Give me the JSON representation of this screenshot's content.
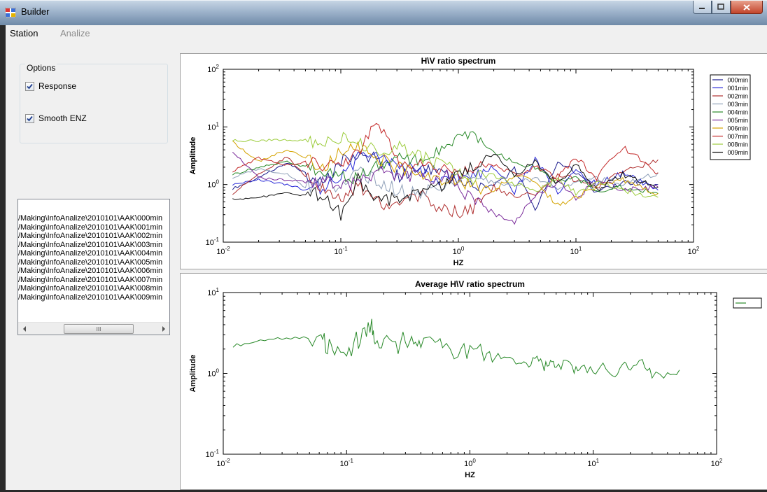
{
  "window": {
    "title": "Builder"
  },
  "menu": {
    "station": "Station",
    "analize": "Analize"
  },
  "options": {
    "legend": "Options",
    "response_label": "Response",
    "response_checked": true,
    "smooth_label": "Smooth ENZ",
    "smooth_checked": true
  },
  "files": [
    "/Making\\InfoAnalize\\2010101\\AAK\\000min",
    "/Making\\InfoAnalize\\2010101\\AAK\\001min",
    "/Making\\InfoAnalize\\2010101\\AAK\\002min",
    "/Making\\InfoAnalize\\2010101\\AAK\\003min",
    "/Making\\InfoAnalize\\2010101\\AAK\\004min",
    "/Making\\InfoAnalize\\2010101\\AAK\\005min",
    "/Making\\InfoAnalize\\2010101\\AAK\\006min",
    "/Making\\InfoAnalize\\2010101\\AAK\\007min",
    "/Making\\InfoAnalize\\2010101\\AAK\\008min",
    "/Making\\InfoAnalize\\2010101\\AAK\\009min"
  ],
  "scrollbar_thumb_glyph": "III",
  "chart_data": [
    {
      "type": "line",
      "title": "H\\V ratio spectrum",
      "xlabel": "HZ",
      "ylabel": "Amplitude",
      "xscale": "log",
      "yscale": "log",
      "xlim": [
        0.01,
        100
      ],
      "ylim": [
        0.1,
        100
      ],
      "xticks": [
        "10-2",
        "10-1",
        "100",
        "101",
        "102"
      ],
      "yticks": [
        "10-1",
        "100",
        "101",
        "102"
      ],
      "legend_position": "right",
      "grid": false,
      "series": [
        {
          "name": "000min",
          "color": "#1a1a8c",
          "x": [
            0.012,
            0.02,
            0.035,
            0.05,
            0.07,
            0.1,
            0.14,
            0.2,
            0.3,
            0.5,
            0.8,
            1.2,
            2,
            3,
            4.5,
            7,
            10,
            15,
            25,
            50
          ],
          "y": [
            0.85,
            1.3,
            2.4,
            1.6,
            1.0,
            2.6,
            3.3,
            3.0,
            1.4,
            1.8,
            1.4,
            0.95,
            0.9,
            1.9,
            0.38,
            2.4,
            1.6,
            0.7,
            1.1,
            1.0
          ]
        },
        {
          "name": "001min",
          "color": "#2b2bd8",
          "x": [
            0.012,
            0.02,
            0.035,
            0.05,
            0.07,
            0.1,
            0.14,
            0.2,
            0.3,
            0.5,
            0.8,
            1.2,
            2,
            3,
            4.5,
            7,
            10,
            15,
            25,
            50
          ],
          "y": [
            1.0,
            1.2,
            1.0,
            0.8,
            0.9,
            1.4,
            2.8,
            3.5,
            2.2,
            1.6,
            1.1,
            1.3,
            2.0,
            0.75,
            2.8,
            0.7,
            1.8,
            1.0,
            1.6,
            0.8
          ]
        },
        {
          "name": "002min",
          "color": "#b03030",
          "x": [
            0.012,
            0.02,
            0.035,
            0.05,
            0.07,
            0.1,
            0.14,
            0.2,
            0.3,
            0.5,
            0.8,
            1.2,
            2,
            3,
            4.5,
            7,
            10,
            15,
            25,
            50
          ],
          "y": [
            0.7,
            1.5,
            3.0,
            1.4,
            0.9,
            0.55,
            1.0,
            0.5,
            0.45,
            0.6,
            0.35,
            0.32,
            0.9,
            0.6,
            0.7,
            1.5,
            1.2,
            0.9,
            1.7,
            2.7
          ]
        },
        {
          "name": "003min",
          "color": "#8fa0b8",
          "x": [
            0.012,
            0.02,
            0.035,
            0.05,
            0.07,
            0.1,
            0.14,
            0.2,
            0.3,
            0.5,
            0.8,
            1.2,
            2,
            3,
            4.5,
            7,
            10,
            15,
            25,
            50
          ],
          "y": [
            1.3,
            1.9,
            1.5,
            0.9,
            1.2,
            0.9,
            1.6,
            1.2,
            0.8,
            0.7,
            1.0,
            1.4,
            1.1,
            1.0,
            1.3,
            0.9,
            1.1,
            1.3,
            1.0,
            1.6
          ]
        },
        {
          "name": "004min",
          "color": "#2a8a2a",
          "x": [
            0.012,
            0.02,
            0.035,
            0.05,
            0.07,
            0.1,
            0.14,
            0.2,
            0.3,
            0.5,
            0.8,
            1.2,
            2,
            3,
            4.5,
            7,
            10,
            15,
            25,
            50
          ],
          "y": [
            1.5,
            2.0,
            2.5,
            2.0,
            1.6,
            1.4,
            1.3,
            2.0,
            3.2,
            2.4,
            5.5,
            7.5,
            3.5,
            2.5,
            2.0,
            1.1,
            1.3,
            0.75,
            0.9,
            0.7
          ]
        },
        {
          "name": "005min",
          "color": "#7a2a9a",
          "x": [
            0.012,
            0.02,
            0.035,
            0.05,
            0.07,
            0.1,
            0.14,
            0.2,
            0.3,
            0.5,
            0.8,
            1.2,
            2,
            3,
            4.5,
            7,
            10,
            15,
            25,
            50
          ],
          "y": [
            3.8,
            1.3,
            1.2,
            1.1,
            1.1,
            0.9,
            1.2,
            1.6,
            1.5,
            1.3,
            1.4,
            0.6,
            0.32,
            0.22,
            0.65,
            1.1,
            0.55,
            1.2,
            0.8,
            0.9
          ]
        },
        {
          "name": "006min",
          "color": "#d4a300",
          "x": [
            0.012,
            0.02,
            0.035,
            0.05,
            0.07,
            0.1,
            0.14,
            0.2,
            0.3,
            0.5,
            0.8,
            1.2,
            2,
            3,
            4.5,
            7,
            10,
            15,
            25,
            50
          ],
          "y": [
            5.5,
            2.5,
            4.0,
            3.0,
            2.0,
            3.5,
            4.5,
            3.0,
            2.0,
            1.5,
            1.2,
            1.0,
            0.8,
            1.5,
            1.1,
            0.45,
            0.6,
            0.9,
            1.2,
            0.7
          ]
        },
        {
          "name": "007min",
          "color": "#c42b2b",
          "x": [
            0.012,
            0.02,
            0.035,
            0.05,
            0.07,
            0.1,
            0.14,
            0.2,
            0.3,
            0.5,
            0.8,
            1.2,
            2,
            3,
            4.5,
            7,
            10,
            15,
            25,
            50
          ],
          "y": [
            1.7,
            2.9,
            2.2,
            2.5,
            2.0,
            2.5,
            3.2,
            14.0,
            2.5,
            2.0,
            1.7,
            1.6,
            2.3,
            1.5,
            2.0,
            1.3,
            3.0,
            1.3,
            4.5,
            1.6
          ]
        },
        {
          "name": "008min",
          "color": "#9ccc3c",
          "x": [
            0.012,
            0.02,
            0.035,
            0.05,
            0.07,
            0.1,
            0.14,
            0.2,
            0.3,
            0.5,
            0.8,
            1.2,
            2,
            3,
            4.5,
            7,
            10,
            15,
            25,
            50
          ],
          "y": [
            5.8,
            5.8,
            6.0,
            5.9,
            4.5,
            7.0,
            5.0,
            4.0,
            4.5,
            3.0,
            2.0,
            1.2,
            1.5,
            1.0,
            0.8,
            1.2,
            0.7,
            1.1,
            0.8,
            0.6
          ]
        },
        {
          "name": "009min",
          "color": "#111111",
          "x": [
            0.012,
            0.02,
            0.035,
            0.05,
            0.07,
            0.1,
            0.14,
            0.2,
            0.3,
            0.5,
            0.8,
            1.2,
            2,
            3,
            4.5,
            7,
            10,
            15,
            25,
            50
          ],
          "y": [
            0.55,
            0.6,
            0.7,
            0.65,
            0.7,
            0.3,
            1.2,
            0.5,
            0.6,
            0.7,
            1.0,
            2.0,
            3.5,
            1.5,
            2.5,
            1.0,
            2.2,
            0.8,
            1.5,
            0.9
          ]
        }
      ]
    },
    {
      "type": "line",
      "title": "Average H\\V ratio spectrum",
      "xlabel": "HZ",
      "ylabel": "Amplitude",
      "xscale": "log",
      "yscale": "log",
      "xlim": [
        0.01,
        100
      ],
      "ylim": [
        0.1,
        10
      ],
      "xticks": [
        "10-2",
        "10-1",
        "100",
        "101",
        "102"
      ],
      "yticks": [
        "10-1",
        "100",
        "101"
      ],
      "legend_position": "right",
      "grid": false,
      "series": [
        {
          "name": "",
          "color": "#2a8a2a",
          "x": [
            0.012,
            0.02,
            0.03,
            0.045,
            0.062,
            0.07,
            0.08,
            0.1,
            0.12,
            0.14,
            0.16,
            0.17,
            0.2,
            0.25,
            0.3,
            0.35,
            0.4,
            0.5,
            0.6,
            0.8,
            1.0,
            1.3,
            1.6,
            2.0,
            2.5,
            3.0,
            3.5,
            4.0,
            4.5,
            5.0,
            6.0,
            7.0,
            8.0,
            10,
            12,
            15,
            18,
            20,
            25,
            30,
            40,
            50
          ],
          "y": [
            2.2,
            2.5,
            2.7,
            2.8,
            2.85,
            2.2,
            1.9,
            1.8,
            2.5,
            3.0,
            3.7,
            2.0,
            2.3,
            2.1,
            2.8,
            2.2,
            2.4,
            2.2,
            2.0,
            1.8,
            1.9,
            1.8,
            1.7,
            1.5,
            1.4,
            1.3,
            1.6,
            1.2,
            1.45,
            1.15,
            1.35,
            1.1,
            1.2,
            1.05,
            1.25,
            0.95,
            1.3,
            1.05,
            1.45,
            0.92,
            1.0,
            1.1
          ]
        }
      ]
    }
  ]
}
